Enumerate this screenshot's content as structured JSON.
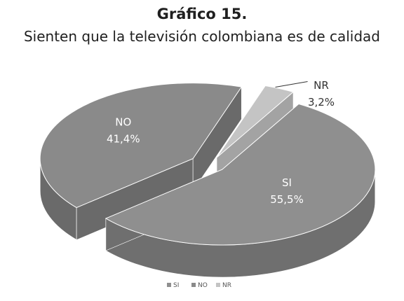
{
  "title": "Gráfico 15.",
  "subtitle": "Sienten que la televisión colombiana es de calidad",
  "chart_data": {
    "type": "pie",
    "title": "Gráfico 15.",
    "subtitle": "Sienten que la televisión colombiana es de calidad",
    "categories": [
      "SI",
      "NO",
      "NR"
    ],
    "values": [
      55.5,
      41.4,
      3.2
    ],
    "value_labels": [
      "55,5%",
      "41,4%",
      "3,2%"
    ],
    "colors": [
      "#8f8f8f",
      "#8a8a8a",
      "#c4c4c4"
    ],
    "legend": {
      "position": "bottom",
      "entries": [
        "SI",
        "NO",
        "NR"
      ]
    },
    "style": "3d-exploded"
  }
}
